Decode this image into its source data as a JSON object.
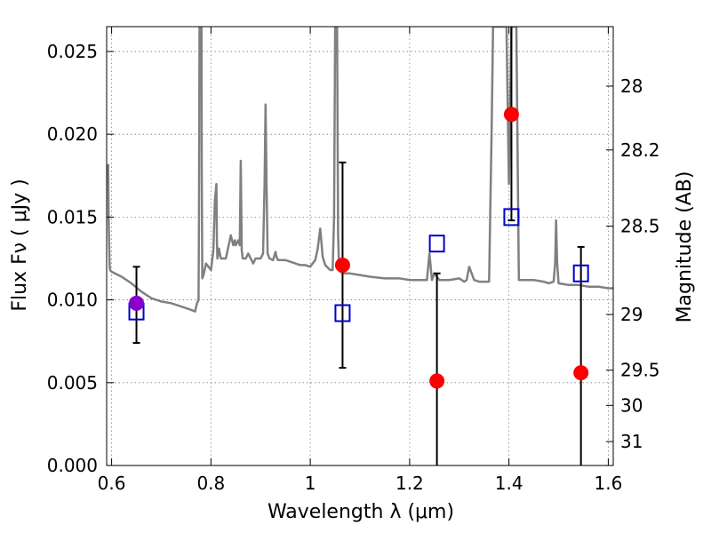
{
  "chart_data": {
    "type": "scatter",
    "title": "",
    "xlabel": "Wavelength  λ (μm)",
    "ylabel": "Flux  Fν  ( μJy )",
    "y2label": "Magnitude (AB)",
    "xlim": [
      0.59,
      1.61
    ],
    "ylim": [
      0.0,
      0.0265
    ],
    "grid": true,
    "x_ticks": [
      0.6,
      0.8,
      1.0,
      1.2,
      1.4,
      1.6
    ],
    "x_tick_labels": [
      "0.6",
      "0.8",
      "1",
      "1.2",
      "1.4",
      "1.6"
    ],
    "y_ticks": [
      0.0,
      0.005,
      0.01,
      0.015,
      0.02,
      0.025
    ],
    "y_tick_labels": [
      "0.000",
      "0.005",
      "0.010",
      "0.015",
      "0.020",
      "0.025"
    ],
    "right_axis": {
      "type": "magnitude_AB",
      "ticks": [
        28,
        28.2,
        28.5,
        29,
        29.5,
        30,
        31
      ],
      "tick_labels": [
        "28",
        "28.2",
        "28.5",
        "29",
        "29.5",
        "30",
        "31"
      ]
    },
    "colors": {
      "model": "#808080",
      "observed": "#ff0000",
      "model_band": "#0000cc",
      "purple": "#8800cc",
      "errorbar": "#000000",
      "grid": "#808080"
    },
    "series": [
      {
        "name": "model spectrum",
        "kind": "line",
        "x": [
          0.593,
          0.594,
          0.596,
          0.597,
          0.6,
          0.62,
          0.64,
          0.66,
          0.68,
          0.7,
          0.72,
          0.74,
          0.76,
          0.768,
          0.772,
          0.775,
          0.776,
          0.777,
          0.779,
          0.781,
          0.7815,
          0.7825,
          0.785,
          0.79,
          0.8,
          0.805,
          0.808,
          0.811,
          0.812,
          0.813,
          0.816,
          0.82,
          0.83,
          0.84,
          0.845,
          0.848,
          0.85,
          0.855,
          0.858,
          0.86,
          0.861,
          0.862,
          0.864,
          0.87,
          0.875,
          0.88,
          0.885,
          0.89,
          0.9,
          0.905,
          0.908,
          0.91,
          0.912,
          0.914,
          0.918,
          0.925,
          0.93,
          0.932,
          0.935,
          0.95,
          0.96,
          0.97,
          0.98,
          0.99,
          1.0,
          1.01,
          1.015,
          1.02,
          1.025,
          1.03,
          1.04,
          1.045,
          1.048,
          1.05,
          1.054,
          1.056,
          1.058,
          1.06,
          1.07,
          1.08,
          1.1,
          1.12,
          1.15,
          1.18,
          1.2,
          1.22,
          1.235,
          1.24,
          1.245,
          1.25,
          1.26,
          1.28,
          1.3,
          1.31,
          1.315,
          1.32,
          1.33,
          1.34,
          1.35,
          1.36,
          1.365,
          1.368,
          1.37,
          1.38,
          1.39,
          1.395,
          1.4,
          1.405,
          1.41,
          1.415,
          1.42,
          1.43,
          1.45,
          1.47,
          1.48,
          1.49,
          1.493,
          1.495,
          1.497,
          1.5,
          1.52,
          1.54,
          1.56,
          1.58,
          1.6,
          1.61
        ],
        "y": [
          0.0182,
          0.015,
          0.012,
          0.0118,
          0.0117,
          0.0114,
          0.011,
          0.0105,
          0.0101,
          0.0099,
          0.0098,
          0.0096,
          0.0094,
          0.0093,
          0.0098,
          0.01,
          0.015,
          0.0265,
          0.0265,
          0.0265,
          0.018,
          0.0113,
          0.0115,
          0.0122,
          0.0118,
          0.013,
          0.016,
          0.017,
          0.0135,
          0.0125,
          0.0131,
          0.0125,
          0.0125,
          0.0139,
          0.0133,
          0.0136,
          0.0133,
          0.0136,
          0.0133,
          0.0184,
          0.016,
          0.013,
          0.0125,
          0.0125,
          0.0128,
          0.0125,
          0.0122,
          0.0125,
          0.0125,
          0.0128,
          0.017,
          0.0218,
          0.017,
          0.0128,
          0.0125,
          0.0124,
          0.0129,
          0.0126,
          0.0124,
          0.0124,
          0.0123,
          0.0122,
          0.0121,
          0.0121,
          0.012,
          0.0124,
          0.0131,
          0.0143,
          0.0126,
          0.0121,
          0.0118,
          0.0118,
          0.015,
          0.0265,
          0.0265,
          0.014,
          0.012,
          0.0117,
          0.0116,
          0.0116,
          0.0115,
          0.0114,
          0.0113,
          0.0113,
          0.0112,
          0.0112,
          0.0112,
          0.0128,
          0.0112,
          0.0116,
          0.0112,
          0.0112,
          0.0113,
          0.0111,
          0.0112,
          0.012,
          0.0112,
          0.0111,
          0.0111,
          0.0111,
          0.02,
          0.0265,
          0.0265,
          0.0265,
          0.0265,
          0.0265,
          0.017,
          0.0265,
          0.0265,
          0.0265,
          0.0112,
          0.0112,
          0.0112,
          0.0111,
          0.011,
          0.0111,
          0.0122,
          0.0148,
          0.0122,
          0.011,
          0.0109,
          0.0109,
          0.0108,
          0.0108,
          0.0107,
          0.0107
        ]
      },
      {
        "name": "model photometry",
        "kind": "square",
        "x": [
          0.65,
          1.065,
          1.255,
          1.405,
          1.545
        ],
        "y": [
          0.0093,
          0.0092,
          0.0134,
          0.015,
          0.0116
        ]
      },
      {
        "name": "observed photometry",
        "kind": "circle",
        "x": [
          0.65,
          1.065,
          1.255,
          1.405,
          1.545
        ],
        "y": [
          0.0098,
          0.0121,
          0.0051,
          0.0212,
          0.0056
        ],
        "yerr_low": [
          0.0074,
          0.0059,
          0.0,
          0.0148,
          0.0
        ],
        "yerr_high": [
          0.012,
          0.0183,
          0.0116,
          0.0265,
          0.0132
        ],
        "colors": [
          "purple",
          "observed",
          "observed",
          "observed",
          "observed"
        ]
      }
    ]
  }
}
